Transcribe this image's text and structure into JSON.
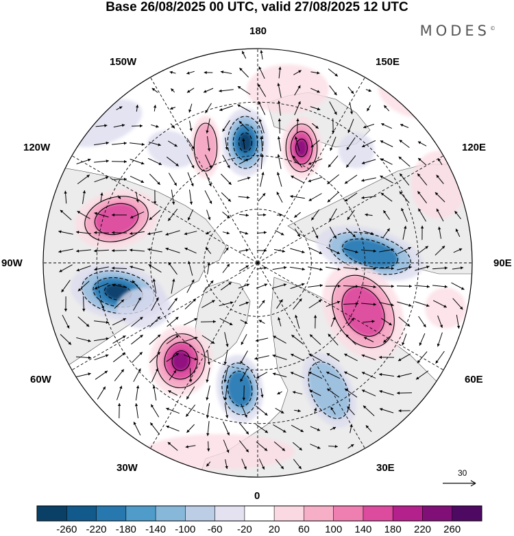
{
  "title": "Base 26/08/2025 00 UTC, valid 27/08/2025 12 UTC",
  "brand": "MODES",
  "brand_mark": "©",
  "longitude_labels": {
    "l180": "180",
    "l150w": "150W",
    "l150e": "150E",
    "l120w": "120W",
    "l120e": "120E",
    "l90w": "90W",
    "l90e": "90E",
    "l60w": "60W",
    "l60e": "60E",
    "l30w": "30W",
    "l30e": "30E",
    "l0": "0"
  },
  "wind_scale": {
    "label": "30"
  },
  "colorbar": {
    "ticks": [
      "-260",
      "-220",
      "-180",
      "-140",
      "-100",
      "-60",
      "-20",
      "20",
      "60",
      "100",
      "140",
      "180",
      "220",
      "260"
    ],
    "colors": [
      "#0a3f66",
      "#12598c",
      "#2878b0",
      "#4f9bc9",
      "#87b8da",
      "#bccde6",
      "#e4e1f0",
      "#ffffff",
      "#fbd9e2",
      "#f7afc7",
      "#ee7fb0",
      "#dc4b9e",
      "#b5218c",
      "#801077",
      "#4e0963"
    ]
  },
  "anomaly_colors": {
    "neg_strong": "#103f6a",
    "neg_mid": "#2d7cb5",
    "neg_light": "#9bbfdf",
    "neg_faint": "#dcdcef",
    "pos_strong": "#8d127e",
    "pos_mid": "#dc4b9e",
    "pos_light": "#f4a6c3",
    "pos_faint": "#fbdde5",
    "land": "#ececec"
  }
}
